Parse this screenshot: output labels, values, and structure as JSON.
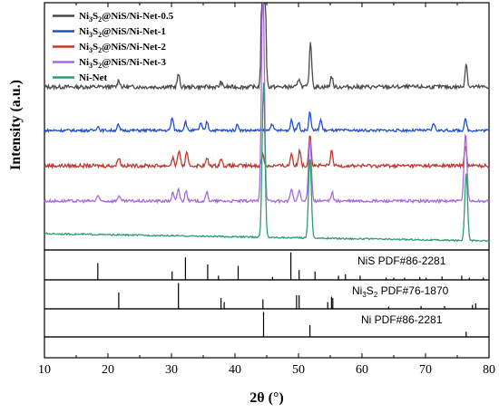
{
  "chart_data": {
    "type": "line",
    "xlabel": "2θ (°)",
    "ylabel": "Intensity (a.u.)",
    "xlim": [
      10,
      80
    ],
    "xticks": [
      "10",
      "20",
      "30",
      "40",
      "50",
      "60",
      "70",
      "80"
    ],
    "legend_position": "top-left",
    "series": [
      {
        "name": "Ni3S2@NiS/Ni-Net-0.5",
        "label_base": "Ni",
        "label_sub1": "3",
        "label_mid": "S",
        "label_sub2": "2",
        "label_tail": "@NiS/Ni-Net-0.5",
        "color": "#4a4a4a",
        "peaks": [
          [
            21.7,
            8
          ],
          [
            31.1,
            14
          ],
          [
            37.8,
            5
          ],
          [
            44.5,
            330
          ],
          [
            50.1,
            10
          ],
          [
            51.9,
            50
          ],
          [
            55.2,
            12
          ],
          [
            76.4,
            26
          ]
        ],
        "noise": 2.2
      },
      {
        "name": "Ni3S2@NiS/Ni-Net-1",
        "label_base": "Ni",
        "label_sub1": "3",
        "label_mid": "S",
        "label_sub2": "2",
        "label_tail": "@NiS/Ni-Net-1",
        "color": "#1f4fd0",
        "peaks": [
          [
            18.4,
            5
          ],
          [
            21.6,
            6
          ],
          [
            30.1,
            14
          ],
          [
            32.2,
            10
          ],
          [
            34.6,
            8
          ],
          [
            35.6,
            10
          ],
          [
            40.4,
            7
          ],
          [
            45.8,
            8
          ],
          [
            48.9,
            12
          ],
          [
            50.0,
            9
          ],
          [
            51.8,
            20
          ],
          [
            53.5,
            12
          ],
          [
            71.3,
            8
          ],
          [
            76.3,
            12
          ]
        ],
        "noise": 1.5
      },
      {
        "name": "Ni3S2@NiS/Ni-Net-2",
        "label_base": "Ni",
        "label_sub1": "3",
        "label_mid": "S",
        "label_sub2": "2",
        "label_tail": "@NiS/Ni-Net-2",
        "color": "#c0392b",
        "peaks": [
          [
            21.7,
            10
          ],
          [
            30.2,
            9
          ],
          [
            31.2,
            18
          ],
          [
            32.4,
            14
          ],
          [
            35.6,
            8
          ],
          [
            37.8,
            8
          ],
          [
            44.4,
            12
          ],
          [
            48.9,
            14
          ],
          [
            50.2,
            18
          ],
          [
            51.8,
            36
          ],
          [
            55.2,
            16
          ],
          [
            76.3,
            22
          ]
        ],
        "noise": 2.0
      },
      {
        "name": "Ni3S2@NiS/Ni-Net-3",
        "label_base": "Ni",
        "label_sub1": "3",
        "label_mid": "S",
        "label_sub2": "2",
        "label_tail": "@NiS/Ni-Net-3",
        "color": "#a66bd9",
        "peaks": [
          [
            18.4,
            6
          ],
          [
            21.7,
            6
          ],
          [
            30.2,
            9
          ],
          [
            31.1,
            14
          ],
          [
            32.3,
            12
          ],
          [
            35.6,
            10
          ],
          [
            44.4,
            250
          ],
          [
            48.9,
            14
          ],
          [
            50.1,
            12
          ],
          [
            51.8,
            70
          ],
          [
            55.3,
            10
          ],
          [
            76.3,
            75
          ]
        ],
        "noise": 1.6
      },
      {
        "name": "Ni-Net",
        "label_base": "Ni-Net",
        "label_sub1": "",
        "label_mid": "",
        "label_sub2": "",
        "label_tail": "",
        "color": "#2e9e6e",
        "peaks": [
          [
            44.5,
            170
          ],
          [
            51.8,
            90
          ],
          [
            76.4,
            75
          ]
        ],
        "noise": 0.8
      }
    ],
    "references": [
      {
        "name": "NiS PDF#86-2281",
        "label_base": "NiS PDF#86-2281",
        "label_sub": "",
        "label_tail": "",
        "lines": [
          [
            18.4,
            0.6
          ],
          [
            30.1,
            0.3
          ],
          [
            32.2,
            0.8
          ],
          [
            35.7,
            0.55
          ],
          [
            37.4,
            0.15
          ],
          [
            40.5,
            0.5
          ],
          [
            45.9,
            0.1
          ],
          [
            48.8,
            0.98
          ],
          [
            50.1,
            0.35
          ],
          [
            52.6,
            0.3
          ],
          [
            56.3,
            0.15
          ],
          [
            57.4,
            0.2
          ],
          [
            59.7,
            0.15
          ],
          [
            63.8,
            0.08
          ],
          [
            65.0,
            0.08
          ],
          [
            66.7,
            0.08
          ],
          [
            69.1,
            0.1
          ],
          [
            70.1,
            0.08
          ],
          [
            72.6,
            0.12
          ],
          [
            75.7,
            0.15
          ],
          [
            76.9,
            0.08
          ],
          [
            79.1,
            0.08
          ]
        ]
      },
      {
        "name": "Ni3S2 PDF#76-1870",
        "label_base": "Ni",
        "label_sub": "3",
        "label_mid": "S",
        "label_sub2": "2",
        "label_tail": " PDF#76-1870",
        "lines": [
          [
            21.7,
            0.6
          ],
          [
            31.1,
            0.95
          ],
          [
            37.8,
            0.4
          ],
          [
            38.3,
            0.25
          ],
          [
            44.4,
            0.35
          ],
          [
            49.7,
            0.5
          ],
          [
            50.1,
            0.5
          ],
          [
            54.6,
            0.25
          ],
          [
            55.2,
            0.45
          ],
          [
            55.4,
            0.4
          ],
          [
            64.2,
            0.08
          ],
          [
            69.3,
            0.1
          ],
          [
            73.0,
            0.1
          ],
          [
            77.4,
            0.15
          ],
          [
            77.9,
            0.2
          ]
        ]
      },
      {
        "name": "Ni PDF#86-2281",
        "label_base": "Ni PDF#86-2281",
        "label_sub": "",
        "label_tail": "",
        "lines": [
          [
            44.5,
            0.95
          ],
          [
            51.8,
            0.45
          ],
          [
            76.4,
            0.2
          ]
        ]
      }
    ]
  }
}
